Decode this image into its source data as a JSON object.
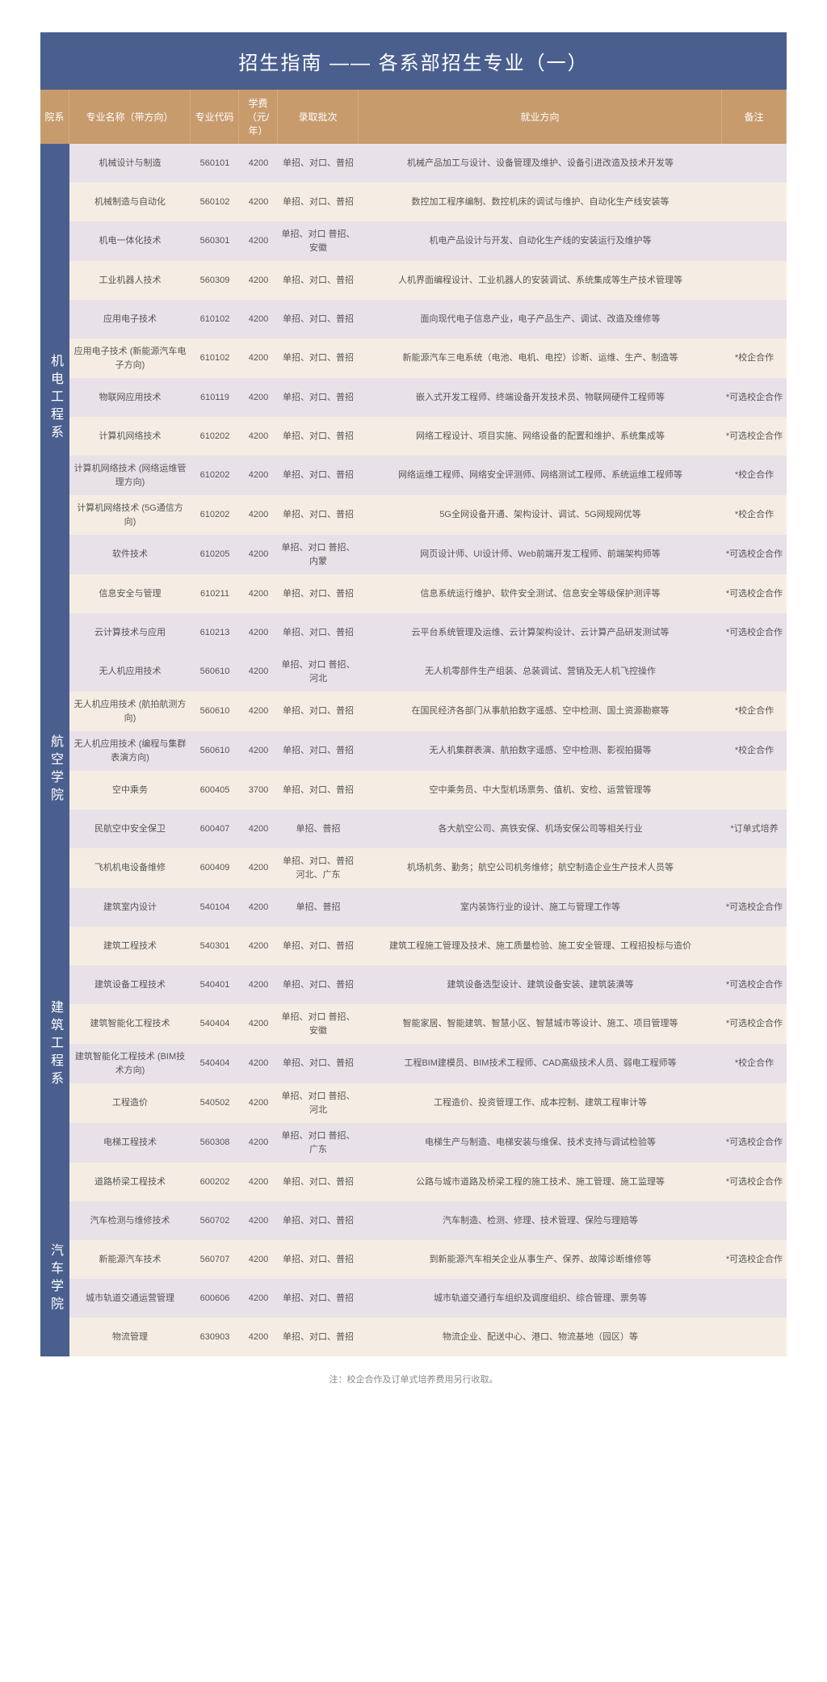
{
  "title": "招生指南 —— 各系部招生专业（一）",
  "headers": {
    "dept": "院系",
    "major": "专业名称（带方向）",
    "code": "专业代码",
    "fee": "学费（元/年）",
    "batch": "录取批次",
    "career": "就业方向",
    "remark": "备注"
  },
  "departments": [
    {
      "name": "机电工程系",
      "rows": [
        {
          "major": "机械设计与制造",
          "code": "560101",
          "fee": "4200",
          "batch": "单招、对口、普招",
          "career": "机械产品加工与设计、设备管理及维护、设备引进改造及技术开发等",
          "remark": ""
        },
        {
          "major": "机械制造与自动化",
          "code": "560102",
          "fee": "4200",
          "batch": "单招、对口、普招",
          "career": "数控加工程序编制、数控机床的调试与维护、自动化生产线安装等",
          "remark": ""
        },
        {
          "major": "机电一体化技术",
          "code": "560301",
          "fee": "4200",
          "batch": "单招、对口 普招、安徽",
          "career": "机电产品设计与开发、自动化生产线的安装运行及维护等",
          "remark": ""
        },
        {
          "major": "工业机器人技术",
          "code": "560309",
          "fee": "4200",
          "batch": "单招、对口、普招",
          "career": "人机界面编程设计、工业机器人的安装调试、系统集成等生产技术管理等",
          "remark": ""
        },
        {
          "major": "应用电子技术",
          "code": "610102",
          "fee": "4200",
          "batch": "单招、对口、普招",
          "career": "面向现代电子信息产业，电子产品生产、调试、改造及维修等",
          "remark": ""
        },
        {
          "major": "应用电子技术 (新能源汽车电子方向)",
          "code": "610102",
          "fee": "4200",
          "batch": "单招、对口、普招",
          "career": "新能源汽车三电系统（电池、电机、电控）诊断、运维、生产、制造等",
          "remark": "*校企合作"
        },
        {
          "major": "物联网应用技术",
          "code": "610119",
          "fee": "4200",
          "batch": "单招、对口、普招",
          "career": "嵌入式开发工程师、终端设备开发技术员、物联网硬件工程师等",
          "remark": "*可选校企合作"
        },
        {
          "major": "计算机网络技术",
          "code": "610202",
          "fee": "4200",
          "batch": "单招、对口、普招",
          "career": "网络工程设计、项目实施、网络设备的配置和维护、系统集成等",
          "remark": "*可选校企合作"
        },
        {
          "major": "计算机网络技术 (网络运维管理方向)",
          "code": "610202",
          "fee": "4200",
          "batch": "单招、对口、普招",
          "career": "网络运维工程师、网络安全评测师、网络测试工程师、系统运维工程师等",
          "remark": "*校企合作"
        },
        {
          "major": "计算机网络技术 (5G通信方向)",
          "code": "610202",
          "fee": "4200",
          "batch": "单招、对口、普招",
          "career": "5G全网设备开通、架构设计、调试、5G网规网优等",
          "remark": "*校企合作"
        },
        {
          "major": "软件技术",
          "code": "610205",
          "fee": "4200",
          "batch": "单招、对口 普招、内蒙",
          "career": "网页设计师、UI设计师、Web前端开发工程师、前端架构师等",
          "remark": "*可选校企合作"
        },
        {
          "major": "信息安全与管理",
          "code": "610211",
          "fee": "4200",
          "batch": "单招、对口、普招",
          "career": "信息系统运行维护、软件安全测试、信息安全等级保护测评等",
          "remark": "*可选校企合作"
        },
        {
          "major": "云计算技术与应用",
          "code": "610213",
          "fee": "4200",
          "batch": "单招、对口、普招",
          "career": "云平台系统管理及运维、云计算架构设计、云计算产品研发测试等",
          "remark": "*可选校企合作"
        }
      ]
    },
    {
      "name": "航空学院",
      "rows": [
        {
          "major": "无人机应用技术",
          "code": "560610",
          "fee": "4200",
          "batch": "单招、对口 普招、河北",
          "career": "无人机零部件生产组装、总装调试、营销及无人机飞控操作",
          "remark": ""
        },
        {
          "major": "无人机应用技术 (航拍航测方向)",
          "code": "560610",
          "fee": "4200",
          "batch": "单招、对口、普招",
          "career": "在国民经济各部门从事航拍数字遥感、空中检测、国土资源勘察等",
          "remark": "*校企合作"
        },
        {
          "major": "无人机应用技术 (编程与集群表演方向)",
          "code": "560610",
          "fee": "4200",
          "batch": "单招、对口、普招",
          "career": "无人机集群表演、航拍数字遥感、空中检测、影视拍摄等",
          "remark": "*校企合作"
        },
        {
          "major": "空中乘务",
          "code": "600405",
          "fee": "3700",
          "batch": "单招、对口、普招",
          "career": "空中乘务员、中大型机场票务、值机、安检、运营管理等",
          "remark": ""
        },
        {
          "major": "民航空中安全保卫",
          "code": "600407",
          "fee": "4200",
          "batch": "单招、普招",
          "career": "各大航空公司、高铁安保、机场安保公司等相关行业",
          "remark": "*订单式培养"
        },
        {
          "major": "飞机机电设备维修",
          "code": "600409",
          "fee": "4200",
          "batch": "单招、对口、普招 河北、广东",
          "career": "机场机务、勤务；航空公司机务维修；航空制造企业生产技术人员等",
          "remark": ""
        }
      ]
    },
    {
      "name": "建筑工程系",
      "rows": [
        {
          "major": "建筑室内设计",
          "code": "540104",
          "fee": "4200",
          "batch": "单招、普招",
          "career": "室内装饰行业的设计、施工与管理工作等",
          "remark": "*可选校企合作"
        },
        {
          "major": "建筑工程技术",
          "code": "540301",
          "fee": "4200",
          "batch": "单招、对口、普招",
          "career": "建筑工程施工管理及技术、施工质量检验、施工安全管理、工程招投标与造价",
          "remark": ""
        },
        {
          "major": "建筑设备工程技术",
          "code": "540401",
          "fee": "4200",
          "batch": "单招、对口、普招",
          "career": "建筑设备选型设计、建筑设备安装、建筑装潢等",
          "remark": "*可选校企合作"
        },
        {
          "major": "建筑智能化工程技术",
          "code": "540404",
          "fee": "4200",
          "batch": "单招、对口 普招、安徽",
          "career": "智能家居、智能建筑、智慧小区、智慧城市等设计、施工、项目管理等",
          "remark": "*可选校企合作"
        },
        {
          "major": "建筑智能化工程技术 (BIM技术方向)",
          "code": "540404",
          "fee": "4200",
          "batch": "单招、对口、普招",
          "career": "工程BIM建模员、BIM技术工程师、CAD高级技术人员、弱电工程师等",
          "remark": "*校企合作"
        },
        {
          "major": "工程造价",
          "code": "540502",
          "fee": "4200",
          "batch": "单招、对口 普招、河北",
          "career": "工程造价、投资管理工作、成本控制、建筑工程审计等",
          "remark": ""
        },
        {
          "major": "电梯工程技术",
          "code": "560308",
          "fee": "4200",
          "batch": "单招、对口 普招、广东",
          "career": "电梯生产与制造、电梯安装与维保、技术支持与调试检验等",
          "remark": "*可选校企合作"
        },
        {
          "major": "道路桥梁工程技术",
          "code": "600202",
          "fee": "4200",
          "batch": "单招、对口、普招",
          "career": "公路与城市道路及桥梁工程的施工技术、施工管理、施工监理等",
          "remark": "*可选校企合作"
        }
      ]
    },
    {
      "name": "汽车学院",
      "rows": [
        {
          "major": "汽车检测与维修技术",
          "code": "560702",
          "fee": "4200",
          "batch": "单招、对口、普招",
          "career": "汽车制造、检测、修理、技术管理、保险与理赔等",
          "remark": ""
        },
        {
          "major": "新能源汽车技术",
          "code": "560707",
          "fee": "4200",
          "batch": "单招、对口、普招",
          "career": "到新能源汽车相关企业从事生产、保养、故障诊断维修等",
          "remark": "*可选校企合作"
        },
        {
          "major": "城市轨道交通运营管理",
          "code": "600606",
          "fee": "4200",
          "batch": "单招、对口、普招",
          "career": "城市轨道交通行车组织及调度组织、综合管理、票务等",
          "remark": ""
        },
        {
          "major": "物流管理",
          "code": "630903",
          "fee": "4200",
          "batch": "单招、对口、普招",
          "career": "物流企业、配送中心、港口、物流基地（园区）等",
          "remark": ""
        }
      ]
    }
  ],
  "footnote": "注：校企合作及订单式培养费用另行收取。"
}
